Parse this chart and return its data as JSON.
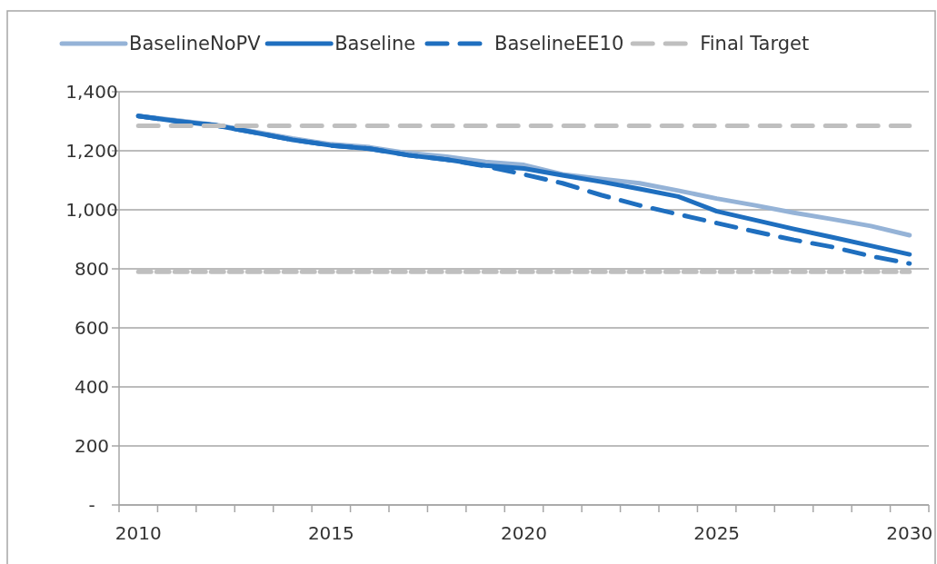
{
  "chart_data": {
    "type": "line",
    "categories": [
      "2010",
      null,
      null,
      null,
      null,
      "2015",
      null,
      null,
      null,
      null,
      "2020",
      null,
      null,
      null,
      null,
      "2025",
      null,
      null,
      null,
      null,
      "2030"
    ],
    "series": [
      {
        "name": "BaselineNoPV",
        "color": "#95b3d7",
        "line_style": "solid",
        "values": [
          1318,
          1303,
          1288,
          1265,
          1242,
          1222,
          1212,
          1192,
          1180,
          1162,
          1152,
          1120,
          1105,
          1090,
          1065,
          1038,
          1015,
          990,
          968,
          945,
          914
        ]
      },
      {
        "name": "Baseline",
        "color": "#1f6fbf",
        "line_style": "solid",
        "values": [
          1318,
          1300,
          1286,
          1262,
          1237,
          1218,
          1207,
          1185,
          1170,
          1150,
          1140,
          1117,
          1095,
          1071,
          1045,
          995,
          965,
          935,
          907,
          878,
          849
        ]
      },
      {
        "name": "BaselineEE10",
        "color": "#1f6fbf",
        "line_style": "dashed",
        "values": [
          1318,
          1300,
          1286,
          1262,
          1237,
          1218,
          1207,
          1185,
          1170,
          1148,
          1120,
          1090,
          1050,
          1015,
          985,
          955,
          926,
          898,
          874,
          843,
          818
        ]
      },
      {
        "name": "Final Target",
        "color": "#bfbfbf",
        "line_style": "dashed",
        "values": [
          1285,
          1285,
          1285,
          1285,
          1285,
          1285,
          1285,
          1285,
          1285,
          1285,
          1285,
          1285,
          1285,
          1285,
          1285,
          1285,
          1285,
          1285,
          1285,
          1285,
          1285
        ]
      },
      {
        "color": "#bfbfbf",
        "line_style": "dotted",
        "values": [
          790,
          790,
          790,
          790,
          790,
          790,
          790,
          790,
          790,
          790,
          790,
          790,
          790,
          790,
          790,
          790,
          790,
          790,
          790,
          790,
          790
        ]
      }
    ],
    "ylim": [
      0,
      1400
    ],
    "yticks": [
      {
        "value": 0,
        "label": "-"
      },
      200,
      400,
      600,
      800,
      {
        "value": 1000,
        "label": "1,000"
      },
      {
        "value": 1200,
        "label": "1,200"
      },
      {
        "value": 1400,
        "label": "1,400"
      }
    ],
    "grid": "y",
    "legend": "top",
    "marker": "none"
  }
}
